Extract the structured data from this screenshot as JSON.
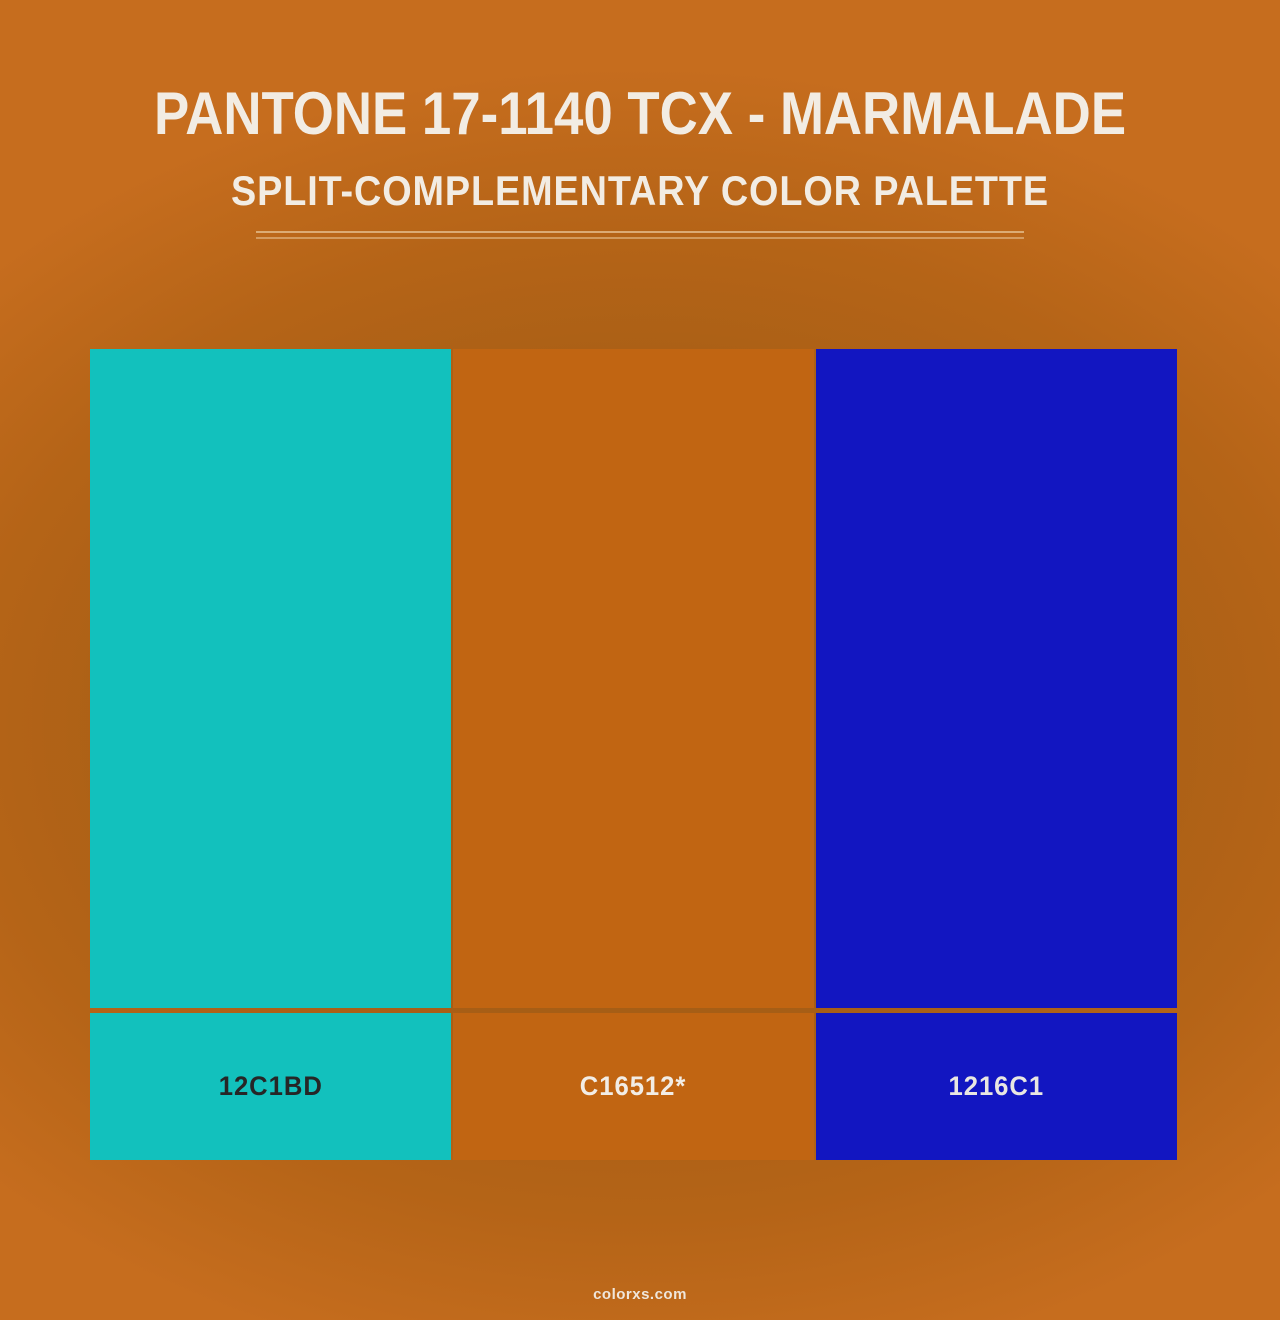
{
  "page": {
    "title": "PANTONE 17-1140 TCX - MARMALADE",
    "subtitle": "SPLIT-COMPLEMENTARY COLOR PALETTE",
    "footer_brand": "colorxs.com",
    "background_base": "#C0681A",
    "background_vignette_dark": "#9E5A14",
    "background_vignette_light": "#C66D1E",
    "heading_text_color": "#F2ECE3",
    "divider_color": "#E2B886"
  },
  "palette": {
    "swatches": [
      {
        "hex_label": "12C1BD",
        "color": "#12C1BD",
        "label_color": "#262626"
      },
      {
        "hex_label": "C16512*",
        "color": "#C16512",
        "label_color": "#F2EDE6"
      },
      {
        "hex_label": "1216C1",
        "color": "#1216C1",
        "label_color": "#E9E7E2"
      }
    ]
  }
}
